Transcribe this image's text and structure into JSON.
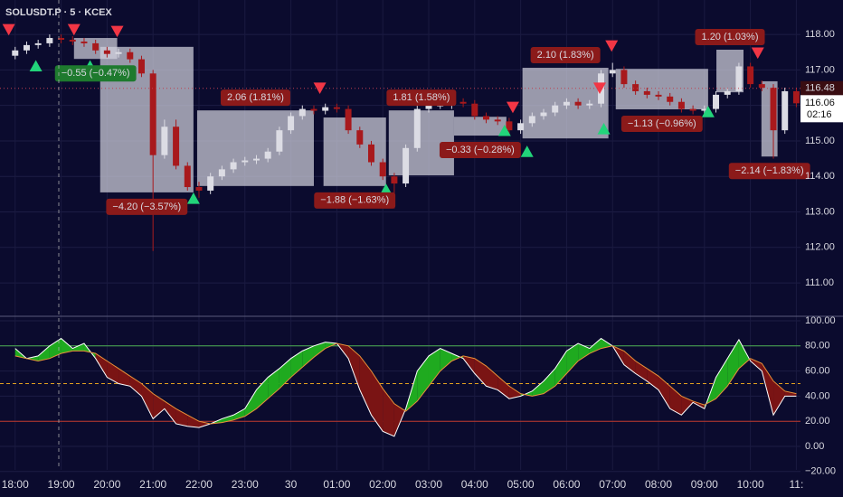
{
  "chart_data": [
    {
      "type": "candlestick",
      "title": "SOLUSDT.P · 5 · KCEX",
      "up_color": "#dcdce4",
      "down_color": "#a8191c",
      "xlim": [
        -0.33,
        17.09
      ],
      "ylim": [
        110.06,
        118.97
      ],
      "yticks": [
        {
          "value": 111,
          "label": "111.00"
        },
        {
          "value": 112,
          "label": "112.00"
        },
        {
          "value": 113,
          "label": "113.00"
        },
        {
          "value": 114,
          "label": "114.00"
        },
        {
          "value": 115,
          "label": "115.00"
        },
        {
          "value": 116,
          "label": "116.00"
        },
        {
          "value": 117,
          "label": "117.00"
        },
        {
          "value": 118,
          "label": "118.00"
        }
      ],
      "grid": true,
      "x": [
        0,
        0.25,
        0.5,
        0.75,
        1,
        1.25,
        1.5,
        1.75,
        2,
        2.25,
        2.5,
        2.75,
        3,
        3.25,
        3.5,
        3.75,
        4,
        4.25,
        4.5,
        4.75,
        5,
        5.25,
        5.5,
        5.75,
        6,
        6.25,
        6.5,
        6.75,
        7,
        7.25,
        7.5,
        7.75,
        8,
        8.25,
        8.5,
        8.75,
        9,
        9.25,
        9.5,
        9.75,
        10,
        10.25,
        10.5,
        10.75,
        11,
        11.25,
        11.5,
        11.75,
        12,
        12.25,
        12.5,
        12.75,
        13,
        13.25,
        13.5,
        13.75,
        14,
        14.25,
        14.5,
        14.75,
        15,
        15.25,
        15.5,
        15.75,
        16,
        16.25,
        16.5,
        16.75,
        17
      ],
      "open": [
        117.4,
        117.55,
        117.7,
        117.75,
        117.9,
        117.85,
        117.8,
        117.75,
        117.55,
        117.45,
        117.5,
        117.3,
        116.9,
        114.6,
        115.4,
        114.3,
        113.7,
        113.6,
        114.0,
        114.2,
        114.4,
        114.45,
        114.5,
        114.7,
        115.3,
        115.7,
        115.9,
        115.85,
        115.95,
        115.9,
        115.3,
        114.9,
        114.4,
        114.0,
        113.8,
        114.8,
        115.9,
        116.0,
        116.0,
        116.1,
        116.05,
        115.7,
        115.6,
        115.55,
        115.3,
        115.5,
        115.7,
        115.8,
        116.0,
        116.1,
        116.0,
        116.05,
        116.9,
        117.0,
        116.6,
        116.4,
        116.3,
        116.25,
        116.1,
        115.9,
        115.85,
        115.9,
        116.3,
        116.4,
        117.1,
        116.6,
        116.5,
        115.3,
        116.4
      ],
      "high": [
        117.65,
        117.8,
        117.85,
        118.0,
        118.0,
        117.95,
        117.9,
        117.85,
        117.65,
        117.6,
        117.6,
        117.4,
        117.0,
        115.6,
        115.6,
        114.4,
        113.85,
        114.1,
        114.3,
        114.5,
        114.55,
        114.6,
        114.8,
        115.4,
        115.8,
        116.0,
        116.0,
        116.05,
        116.05,
        116.0,
        115.4,
        115.0,
        114.5,
        114.1,
        114.9,
        116.0,
        116.1,
        116.1,
        116.2,
        116.2,
        116.15,
        115.8,
        115.7,
        115.65,
        115.6,
        115.8,
        115.9,
        116.1,
        116.2,
        116.2,
        116.15,
        117.0,
        117.2,
        117.1,
        116.7,
        116.5,
        116.4,
        116.35,
        116.2,
        116.0,
        116.0,
        116.4,
        116.5,
        117.2,
        117.2,
        116.7,
        116.6,
        116.5,
        116.5
      ],
      "low": [
        117.3,
        117.45,
        117.6,
        117.65,
        117.75,
        117.7,
        117.65,
        117.45,
        117.35,
        117.35,
        117.2,
        116.8,
        111.9,
        114.5,
        114.2,
        113.6,
        113.4,
        113.5,
        113.9,
        114.1,
        114.3,
        114.35,
        114.4,
        114.6,
        115.2,
        115.6,
        115.75,
        115.75,
        115.8,
        115.2,
        114.8,
        114.3,
        113.9,
        113.1,
        113.7,
        114.7,
        115.8,
        115.9,
        115.9,
        115.95,
        115.6,
        115.5,
        115.45,
        115.2,
        115.2,
        115.4,
        115.6,
        115.7,
        115.9,
        115.9,
        115.9,
        115.95,
        116.8,
        116.5,
        116.3,
        116.2,
        116.15,
        116.0,
        115.8,
        115.75,
        115.75,
        115.8,
        116.2,
        116.3,
        116.5,
        116.4,
        114.5,
        115.2,
        115.95
      ],
      "close": [
        117.55,
        117.7,
        117.75,
        117.9,
        117.85,
        117.8,
        117.75,
        117.55,
        117.45,
        117.5,
        117.3,
        116.9,
        114.6,
        115.4,
        114.3,
        113.7,
        113.6,
        114.0,
        114.2,
        114.4,
        114.45,
        114.5,
        114.7,
        115.3,
        115.7,
        115.9,
        115.85,
        115.95,
        115.9,
        115.3,
        114.9,
        114.4,
        114.0,
        113.8,
        114.8,
        115.9,
        116.0,
        116.0,
        116.1,
        116.05,
        115.7,
        115.6,
        115.55,
        115.3,
        115.5,
        115.7,
        115.8,
        116.0,
        116.1,
        116.0,
        116.05,
        116.9,
        117.0,
        116.6,
        116.4,
        116.3,
        116.25,
        116.1,
        115.9,
        115.85,
        115.9,
        116.3,
        116.4,
        117.1,
        116.6,
        116.5,
        115.3,
        116.4,
        116.06
      ],
      "ranges": [
        {
          "x0": 1.28,
          "x1": 2.22,
          "low": 117.31,
          "high": 117.9,
          "label": "−0.55 (−0.47%)",
          "color": "#1e7a2e"
        },
        {
          "x0": 1.85,
          "x1": 3.88,
          "low": 113.55,
          "high": 117.65,
          "label": "−4.20 (−3.57%)",
          "color": "#8b1a1a"
        },
        {
          "x0": 3.96,
          "x1": 6.5,
          "low": 113.73,
          "high": 115.86,
          "label": "2.06 (1.81%)",
          "color": "#8b1a1a"
        },
        {
          "x0": 6.71,
          "x1": 8.07,
          "low": 113.73,
          "high": 115.66,
          "label": "−1.88 (−1.63%)",
          "color": "#8b1a1a"
        },
        {
          "x0": 8.13,
          "x1": 9.55,
          "low": 114.03,
          "high": 115.86,
          "label": "1.81 (1.58%)",
          "color": "#8b1a1a"
        },
        {
          "x0": 9.55,
          "x1": 10.69,
          "low": 115.15,
          "high": 115.68,
          "label": "−0.33 (−0.28%)",
          "color": "#8b1a1a"
        },
        {
          "x0": 11.04,
          "x1": 12.91,
          "low": 115.07,
          "high": 117.06,
          "label": "2.10 (1.83%)",
          "color": "#8b1a1a"
        },
        {
          "x0": 13.07,
          "x1": 15.08,
          "low": 115.89,
          "high": 117.03,
          "label": "−1.13 (−0.96%)",
          "color": "#8b1a1a"
        },
        {
          "x0": 15.26,
          "x1": 15.85,
          "low": 116.37,
          "high": 117.57,
          "label": "1.20 (1.03%)",
          "color": "#8b1a1a"
        },
        {
          "x0": 16.24,
          "x1": 16.59,
          "low": 114.56,
          "high": 116.68,
          "label": "−2.14 (−1.83%)",
          "color": "#8b1a1a"
        }
      ],
      "signals": {
        "x": [
          -0.14,
          1.28,
          2.22,
          0.45,
          1.63,
          3.88,
          6.63,
          8.07,
          10.83,
          10.65,
          11.14,
          12.72,
          12.98,
          12.81,
          15.08,
          16.16
        ],
        "price": [
          118.15,
          118.15,
          118.1,
          117.1,
          117.1,
          113.37,
          116.5,
          113.62,
          115.96,
          115.28,
          114.69,
          116.5,
          117.69,
          115.33,
          115.81,
          117.49
        ],
        "direction": [
          "down",
          "down",
          "down",
          "up",
          "up",
          "up",
          "down",
          "up",
          "down",
          "up",
          "up",
          "down",
          "down",
          "up",
          "up",
          "down"
        ],
        "up_color": "#22d47a",
        "down_color": "#f23645"
      },
      "reference_price": 116.48,
      "last_price": 116.06,
      "countdown": "02:16"
    },
    {
      "type": "oscillator",
      "xlim": [
        -0.33,
        17.09
      ],
      "ylim": [
        -18.7,
        103.6
      ],
      "yticks": [
        {
          "value": -20,
          "label": "−20.00"
        },
        {
          "value": 0,
          "label": "0.00"
        },
        {
          "value": 20,
          "label": "20.00"
        },
        {
          "value": 40,
          "label": "40.00"
        },
        {
          "value": 60,
          "label": "60.00"
        },
        {
          "value": 80,
          "label": "80.00"
        },
        {
          "value": 100,
          "label": "100.00"
        }
      ],
      "xticks": [
        {
          "value": 0,
          "label": "18:00"
        },
        {
          "value": 1,
          "label": "19:00"
        },
        {
          "value": 2,
          "label": "20:00"
        },
        {
          "value": 3,
          "label": "21:00"
        },
        {
          "value": 4,
          "label": "22:00"
        },
        {
          "value": 5,
          "label": "23:00"
        },
        {
          "value": 6,
          "label": "30"
        },
        {
          "value": 7,
          "label": "01:00"
        },
        {
          "value": 8,
          "label": "02:00"
        },
        {
          "value": 9,
          "label": "03:00"
        },
        {
          "value": 10,
          "label": "04:00"
        },
        {
          "value": 11,
          "label": "05:00"
        },
        {
          "value": 12,
          "label": "06:00"
        },
        {
          "value": 13,
          "label": "07:00"
        },
        {
          "value": 14,
          "label": "08:00"
        },
        {
          "value": 15,
          "label": "09:00"
        },
        {
          "value": 16,
          "label": "10:00"
        },
        {
          "value": 17,
          "label": "11:"
        }
      ],
      "levels": [
        {
          "value": 80,
          "color": "#4caf50",
          "dashed": false
        },
        {
          "value": 50,
          "color": "#e0a020",
          "dashed": true
        },
        {
          "value": 20,
          "color": "#c0392b",
          "dashed": false
        }
      ],
      "bull_fill": "#1faa1f",
      "bear_fill": "#7a1414",
      "x": [
        0,
        0.25,
        0.5,
        0.75,
        1,
        1.25,
        1.5,
        1.75,
        2,
        2.25,
        2.5,
        2.75,
        3,
        3.25,
        3.5,
        3.75,
        4,
        4.25,
        4.5,
        4.75,
        5,
        5.25,
        5.5,
        5.75,
        6,
        6.25,
        6.5,
        6.75,
        7,
        7.25,
        7.5,
        7.75,
        8,
        8.25,
        8.5,
        8.75,
        9,
        9.25,
        9.5,
        9.75,
        10,
        10.25,
        10.5,
        10.75,
        11,
        11.25,
        11.5,
        11.75,
        12,
        12.25,
        12.5,
        12.75,
        13,
        13.25,
        13.5,
        13.75,
        14,
        14.25,
        14.5,
        14.75,
        15,
        15.25,
        15.5,
        15.75,
        16,
        16.25,
        16.5,
        16.75,
        17
      ],
      "series": [
        {
          "color": "#ffffff",
          "values": [
            78,
            70,
            72,
            80,
            86,
            78,
            82,
            70,
            55,
            50,
            48,
            40,
            22,
            30,
            18,
            16,
            15,
            18,
            22,
            25,
            30,
            45,
            55,
            62,
            70,
            76,
            80,
            83,
            82,
            70,
            45,
            25,
            12,
            8,
            30,
            60,
            72,
            78,
            74,
            70,
            58,
            48,
            45,
            38,
            40,
            44,
            52,
            62,
            76,
            82,
            78,
            86,
            80,
            65,
            58,
            52,
            45,
            30,
            25,
            35,
            30,
            55,
            70,
            85,
            68,
            60,
            25,
            40,
            40
          ]
        },
        {
          "color": "#e8913a",
          "values": [
            72,
            70,
            68,
            70,
            74,
            76,
            76,
            74,
            68,
            62,
            56,
            50,
            42,
            36,
            30,
            25,
            20,
            18,
            19,
            21,
            24,
            30,
            38,
            46,
            55,
            63,
            71,
            78,
            82,
            80,
            72,
            60,
            46,
            34,
            28,
            36,
            48,
            60,
            68,
            72,
            70,
            64,
            56,
            48,
            42,
            40,
            42,
            48,
            58,
            68,
            74,
            78,
            80,
            76,
            68,
            62,
            56,
            48,
            40,
            36,
            33,
            38,
            48,
            62,
            70,
            66,
            52,
            44,
            42
          ]
        }
      ]
    }
  ]
}
